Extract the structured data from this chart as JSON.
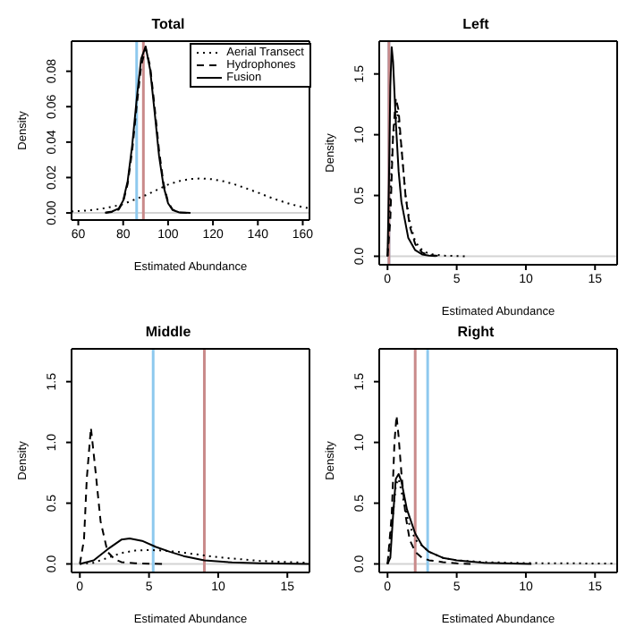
{
  "chart_data": [
    {
      "type": "line",
      "title": "Total",
      "xlabel": "Estimated Abundance",
      "ylabel": "Density",
      "legend": "top right",
      "xlim": [
        57,
        163
      ],
      "xticks": [
        60,
        80,
        100,
        120,
        140,
        160
      ],
      "ylim": [
        -0.004,
        0.097
      ],
      "yticks": [
        {
          "value": 0,
          "label": "0.00"
        },
        {
          "value": 0.02,
          "label": "0.02"
        },
        {
          "value": 0.04,
          "label": "0.04"
        },
        {
          "value": 0.06,
          "label": "0.06"
        },
        {
          "value": 0.08,
          "label": "0.08"
        }
      ],
      "ref_lines": [
        {
          "axis": "y",
          "value": 0,
          "color": "#d3d3d3"
        },
        {
          "axis": "x",
          "value": 86,
          "color": "#8ec9ee"
        },
        {
          "axis": "x",
          "value": 89,
          "color": "#c98a8a"
        }
      ],
      "series": [
        {
          "name": "Aerial Transect",
          "color": "#000000",
          "line_style": "dotted",
          "x": [
            57,
            65,
            70,
            75,
            80,
            85,
            90,
            95,
            100,
            105,
            110,
            115,
            120,
            125,
            130,
            135,
            140,
            145,
            150,
            155,
            160,
            163
          ],
          "values": [
            0.0008,
            0.0015,
            0.0023,
            0.0035,
            0.005,
            0.0075,
            0.01,
            0.013,
            0.016,
            0.018,
            0.0192,
            0.0195,
            0.019,
            0.0178,
            0.016,
            0.0138,
            0.0115,
            0.009,
            0.0068,
            0.0048,
            0.0033,
            0.0026
          ]
        },
        {
          "name": "Hydrophones",
          "color": "#000000",
          "line_style": "dashed",
          "x": [
            72,
            75,
            78,
            80,
            82,
            84,
            86,
            88,
            90,
            92,
            94,
            96,
            98,
            100,
            102,
            105,
            110
          ],
          "values": [
            0.0001,
            0.0005,
            0.0019,
            0.0062,
            0.0164,
            0.035,
            0.06,
            0.083,
            0.093,
            0.083,
            0.06,
            0.035,
            0.0164,
            0.0062,
            0.0019,
            0.0003,
            0
          ]
        },
        {
          "name": "Fusion",
          "color": "#000000",
          "line_style": "solid",
          "x": [
            72,
            75,
            78,
            80,
            82,
            84,
            86,
            88,
            90,
            92,
            94,
            96,
            98,
            100,
            102,
            105,
            110
          ],
          "values": [
            0.0002,
            0.0008,
            0.0025,
            0.007,
            0.018,
            0.038,
            0.064,
            0.087,
            0.094,
            0.081,
            0.057,
            0.032,
            0.015,
            0.0055,
            0.0017,
            0.0003,
            0
          ]
        }
      ]
    },
    {
      "type": "line",
      "title": "Left",
      "xlabel": "Estimated Abundance",
      "ylabel": "Density",
      "xlim": [
        -0.6,
        16.6
      ],
      "xticks": [
        0,
        5,
        10,
        15
      ],
      "ylim": [
        -0.07,
        1.77
      ],
      "yticks": [
        {
          "value": 0,
          "label": "0.0"
        },
        {
          "value": 0.5,
          "label": "0.5"
        },
        {
          "value": 1,
          "label": "1.0"
        },
        {
          "value": 1.5,
          "label": "1.5"
        }
      ],
      "ref_lines": [
        {
          "axis": "y",
          "value": 0,
          "color": "#d3d3d3"
        },
        {
          "axis": "x",
          "value": 0.1,
          "color": "#8ec9ee"
        },
        {
          "axis": "x",
          "value": 0.1,
          "color": "#c98a8a"
        }
      ],
      "series": [
        {
          "color": "#000000",
          "line_style": "dotted",
          "x": [
            0,
            0.2,
            0.4,
            0.7,
            1,
            1.3,
            1.6,
            2,
            2.5,
            3,
            4,
            5.7
          ],
          "values": [
            0,
            0.5,
            1,
            1.2,
            0.9,
            0.5,
            0.28,
            0.12,
            0.05,
            0.02,
            0.005,
            0
          ]
        },
        {
          "color": "#000000",
          "line_style": "dashed",
          "x": [
            0,
            0.2,
            0.4,
            0.6,
            0.8,
            1,
            1.3,
            1.6,
            2,
            2.5,
            3,
            4
          ],
          "values": [
            0,
            0.3,
            1,
            1.3,
            1.2,
            0.9,
            0.5,
            0.25,
            0.1,
            0.03,
            0.01,
            0
          ]
        },
        {
          "color": "#000000",
          "line_style": "solid",
          "x": [
            0,
            0.1,
            0.2,
            0.3,
            0.4,
            0.6,
            0.8,
            1,
            1.5,
            2,
            2.5,
            3,
            3.5
          ],
          "values": [
            0,
            0.6,
            1.4,
            1.72,
            1.6,
            1.1,
            0.7,
            0.45,
            0.15,
            0.05,
            0.015,
            0.005,
            0.002
          ]
        }
      ]
    },
    {
      "type": "line",
      "title": "Middle",
      "xlabel": "Estimated Abundance",
      "ylabel": "Density",
      "xlim": [
        -0.6,
        16.6
      ],
      "xticks": [
        0,
        5,
        10,
        15
      ],
      "ylim": [
        -0.07,
        1.77
      ],
      "yticks": [
        {
          "value": 0,
          "label": "0.0"
        },
        {
          "value": 0.5,
          "label": "0.5"
        },
        {
          "value": 1,
          "label": "1.0"
        },
        {
          "value": 1.5,
          "label": "1.5"
        }
      ],
      "ref_lines": [
        {
          "axis": "y",
          "value": 0,
          "color": "#d3d3d3"
        },
        {
          "axis": "x",
          "value": 5.3,
          "color": "#8ec9ee"
        },
        {
          "axis": "x",
          "value": 9,
          "color": "#c98a8a"
        }
      ],
      "series": [
        {
          "color": "#000000",
          "line_style": "dotted",
          "x": [
            0,
            1,
            2,
            3,
            4,
            5,
            6,
            7,
            8,
            9,
            10,
            11,
            12,
            13,
            14,
            15,
            16.6
          ],
          "values": [
            0,
            0.01,
            0.05,
            0.09,
            0.11,
            0.115,
            0.11,
            0.1,
            0.085,
            0.07,
            0.055,
            0.045,
            0.035,
            0.025,
            0.02,
            0.015,
            0.01
          ]
        },
        {
          "color": "#000000",
          "line_style": "dashed",
          "x": [
            0,
            0.3,
            0.5,
            0.8,
            1.1,
            1.5,
            2,
            2.5,
            3,
            4,
            6
          ],
          "values": [
            0,
            0.2,
            0.7,
            1.12,
            0.8,
            0.35,
            0.1,
            0.04,
            0.015,
            0.005,
            0
          ]
        },
        {
          "color": "#000000",
          "line_style": "solid",
          "x": [
            0,
            1,
            2,
            3,
            3.6,
            4.5,
            5.5,
            6.5,
            7.5,
            9,
            11,
            13,
            16.6
          ],
          "values": [
            0,
            0.03,
            0.12,
            0.2,
            0.21,
            0.19,
            0.14,
            0.1,
            0.065,
            0.03,
            0.012,
            0.005,
            0
          ]
        }
      ]
    },
    {
      "type": "line",
      "title": "Right",
      "xlabel": "Estimated Abundance",
      "ylabel": "Density",
      "xlim": [
        -0.6,
        16.6
      ],
      "xticks": [
        0,
        5,
        10,
        15
      ],
      "ylim": [
        -0.07,
        1.77
      ],
      "yticks": [
        {
          "value": 0,
          "label": "0.0"
        },
        {
          "value": 0.5,
          "label": "0.5"
        },
        {
          "value": 1,
          "label": "1.0"
        },
        {
          "value": 1.5,
          "label": "1.5"
        }
      ],
      "ref_lines": [
        {
          "axis": "y",
          "value": 0,
          "color": "#d3d3d3"
        },
        {
          "axis": "x",
          "value": 2,
          "color": "#c98a8a"
        },
        {
          "axis": "x",
          "value": 2.9,
          "color": "#8ec9ee"
        }
      ],
      "series": [
        {
          "color": "#000000",
          "line_style": "dotted",
          "x": [
            0,
            0.3,
            0.6,
            0.8,
            1,
            1.5,
            2,
            3,
            4,
            5,
            7,
            10,
            16.6
          ],
          "values": [
            0,
            0.3,
            0.65,
            0.7,
            0.6,
            0.35,
            0.2,
            0.1,
            0.05,
            0.03,
            0.015,
            0.007,
            0.003
          ]
        },
        {
          "color": "#000000",
          "line_style": "dashed",
          "x": [
            0,
            0.3,
            0.5,
            0.65,
            0.8,
            1,
            1.3,
            1.6,
            2,
            2.5,
            3,
            4,
            5,
            6
          ],
          "values": [
            0,
            0.4,
            1,
            1.22,
            1.05,
            0.75,
            0.4,
            0.2,
            0.1,
            0.05,
            0.03,
            0.015,
            0.005,
            0
          ]
        },
        {
          "color": "#000000",
          "line_style": "solid",
          "x": [
            0,
            0.2,
            0.4,
            0.6,
            0.8,
            1,
            1.4,
            2,
            2.5,
            3,
            4,
            5,
            7,
            10.4
          ],
          "values": [
            0,
            0.05,
            0.4,
            0.7,
            0.74,
            0.68,
            0.45,
            0.25,
            0.15,
            0.1,
            0.05,
            0.03,
            0.01,
            0
          ]
        }
      ]
    }
  ]
}
